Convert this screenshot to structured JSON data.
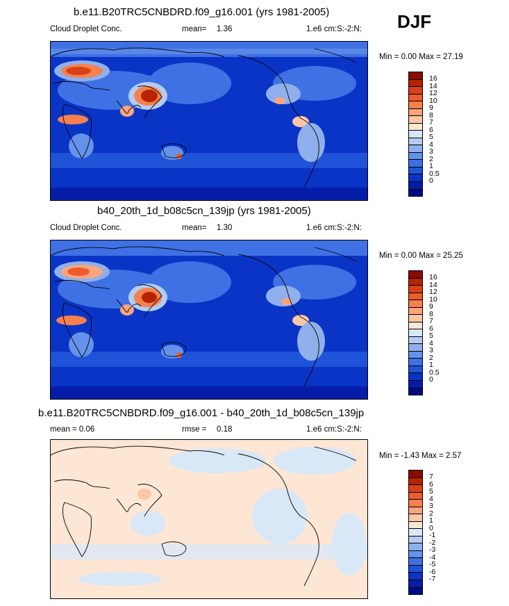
{
  "season": "DJF",
  "panels": [
    {
      "title": "b.e11.B20TRC5CNBDRD.f09_g16.001 (yrs 1981-2005)",
      "left_label": "Cloud Droplet Conc.",
      "mean_label": "mean=",
      "mean_value": "1.36",
      "units": "1.e6 cm:S:-2:N:",
      "min_max": "Min =   0.00 Max =  27.19",
      "colorbar": {
        "colors": [
          "#8a0b00",
          "#b62400",
          "#d84115",
          "#ee5b2c",
          "#f7804f",
          "#fba57c",
          "#fcc7a6",
          "#fde6d4",
          "#d9e8f7",
          "#b4ccf0",
          "#8fb0ec",
          "#6592ea",
          "#3f71e4",
          "#1f53d8",
          "#0a34c6",
          "#051da8",
          "#000a80"
        ],
        "labels": [
          "16",
          "14",
          "12",
          "10",
          "9",
          "8",
          "7",
          "6",
          "5",
          "4",
          "3",
          "2",
          "1",
          "0.5",
          "0"
        ]
      }
    },
    {
      "title": "b40_20th_1d_b08c5cn_139jp (yrs 1981-2005)",
      "left_label": "Cloud Droplet Conc.",
      "mean_label": "mean=",
      "mean_value": "1.30",
      "units": "1.e6 cm:S:-2:N:",
      "min_max": "Min =   0.00 Max =  25.25",
      "colorbar": {
        "colors": [
          "#8a0b00",
          "#b62400",
          "#d84115",
          "#ee5b2c",
          "#f7804f",
          "#fba57c",
          "#fcc7a6",
          "#fde6d4",
          "#d9e8f7",
          "#b4ccf0",
          "#8fb0ec",
          "#6592ea",
          "#3f71e4",
          "#1f53d8",
          "#0a34c6",
          "#051da8",
          "#000a80"
        ],
        "labels": [
          "16",
          "14",
          "12",
          "10",
          "9",
          "8",
          "7",
          "6",
          "5",
          "4",
          "3",
          "2",
          "1",
          "0.5",
          "0"
        ]
      }
    },
    {
      "title": "b.e11.B20TRC5CNBDRD.f09_g16.001 - b40_20th_1d_b08c5cn_139jp",
      "left_label": "mean =    0.06",
      "mean_label": "rmse =",
      "mean_value": "0.18",
      "units": "1.e6 cm:S:-2:N:",
      "min_max": "Min =  -1.43 Max =   2.57",
      "colorbar": {
        "colors": [
          "#8a0b00",
          "#b62400",
          "#d84115",
          "#ee5b2c",
          "#f7804f",
          "#fba57c",
          "#fcc7a6",
          "#fde6d4",
          "#d9e8f7",
          "#b4ccf0",
          "#8fb0ec",
          "#6592ea",
          "#3f71e4",
          "#1f53d8",
          "#0a34c6",
          "#051da8",
          "#000a80"
        ],
        "labels": [
          "7",
          "6",
          "5",
          "4",
          "3",
          "2",
          "1",
          "0",
          "-1",
          "-2",
          "-3",
          "-4",
          "-5",
          "-6",
          "-7"
        ]
      }
    }
  ]
}
